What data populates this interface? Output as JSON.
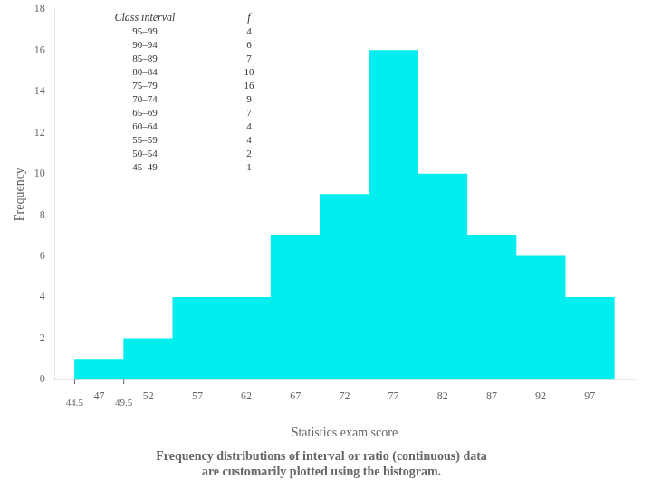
{
  "chart_data": {
    "type": "histogram",
    "bins": [
      44.5,
      49.5,
      54.5,
      59.5,
      64.5,
      69.5,
      74.5,
      79.5,
      84.5,
      89.5,
      94.5,
      99.5
    ],
    "values": [
      1,
      2,
      4,
      4,
      7,
      9,
      16,
      10,
      7,
      6,
      4
    ],
    "color": "#00EEEE",
    "xlabel": "Statistics exam score",
    "ylabel": "Frequency",
    "xlim": [
      42.5,
      101.5
    ],
    "xticks": [
      47,
      52,
      57,
      62,
      67,
      72,
      77,
      82,
      87,
      92,
      97
    ],
    "ylim": [
      0,
      18
    ],
    "yticks": [
      0,
      2,
      4,
      6,
      8,
      10,
      12,
      14,
      16,
      18
    ],
    "grid": false,
    "annotations": [
      {
        "text": "44.5",
        "x": 44.5
      },
      {
        "text": "49.5",
        "x": 49.5
      }
    ],
    "table": {
      "columns": [
        "Class interval",
        "f"
      ],
      "rows": [
        [
          "95–99",
          "4"
        ],
        [
          "90–94",
          "6"
        ],
        [
          "85–89",
          "7"
        ],
        [
          "80–84",
          "10"
        ],
        [
          "75–79",
          "16"
        ],
        [
          "70–74",
          "9"
        ],
        [
          "65–69",
          "7"
        ],
        [
          "60–64",
          "4"
        ],
        [
          "55–59",
          "4"
        ],
        [
          "50–54",
          "2"
        ],
        [
          "45–49",
          "1"
        ]
      ]
    },
    "caption": [
      "Frequency distributions of interval or ratio (continuous) data",
      "are customarily plotted using the histogram."
    ]
  }
}
